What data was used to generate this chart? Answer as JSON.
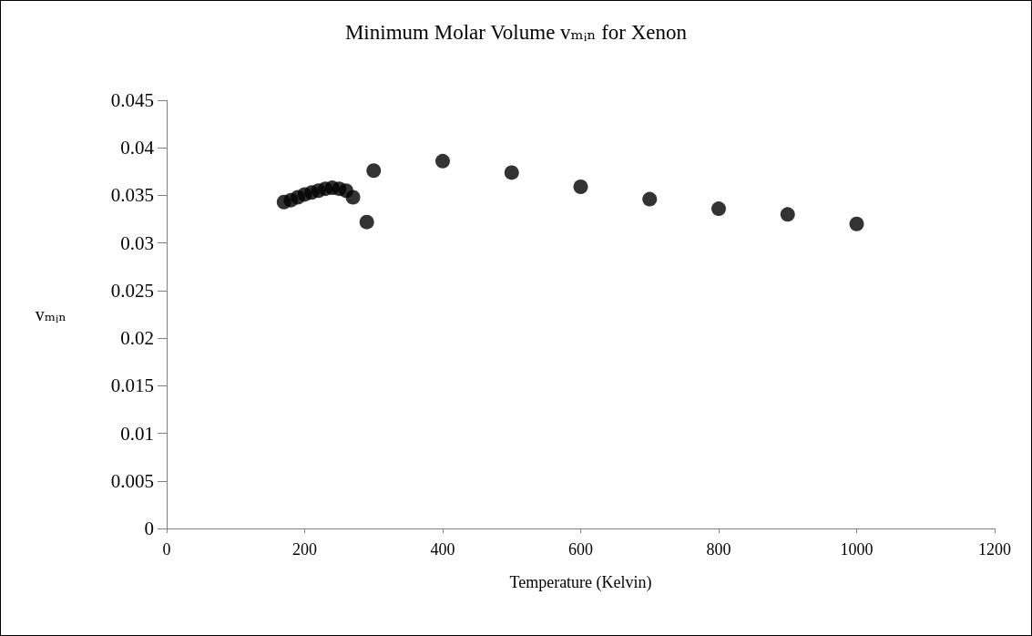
{
  "chart_data": {
    "type": "scatter",
    "title": "Minimum Molar Volume vₘᵢₙ for Xenon",
    "xlabel": "Temperature (Kelvin)",
    "ylabel": "vₘᵢₙ",
    "x": [
      170,
      180,
      190,
      200,
      210,
      220,
      230,
      240,
      250,
      260,
      270,
      290,
      300,
      400,
      500,
      600,
      700,
      800,
      900,
      1000
    ],
    "series": [
      {
        "color": "#000000",
        "values": [
          0.0343,
          0.0345,
          0.0348,
          0.0351,
          0.0353,
          0.0355,
          0.0357,
          0.0358,
          0.0357,
          0.0355,
          0.0348,
          0.0322,
          0.0376,
          0.0386,
          0.0374,
          0.0359,
          0.0346,
          0.0336,
          0.033,
          0.032
        ]
      }
    ],
    "xlim": [
      0,
      1200
    ],
    "xticks": [
      0,
      200,
      400,
      600,
      800,
      1000,
      1200
    ],
    "ylim": [
      0,
      0.045
    ],
    "yticks": [
      0,
      0.005,
      0.01,
      0.015,
      0.02,
      0.025,
      0.03,
      0.035,
      0.04,
      0.045
    ],
    "grid": false,
    "marker": "circle"
  }
}
